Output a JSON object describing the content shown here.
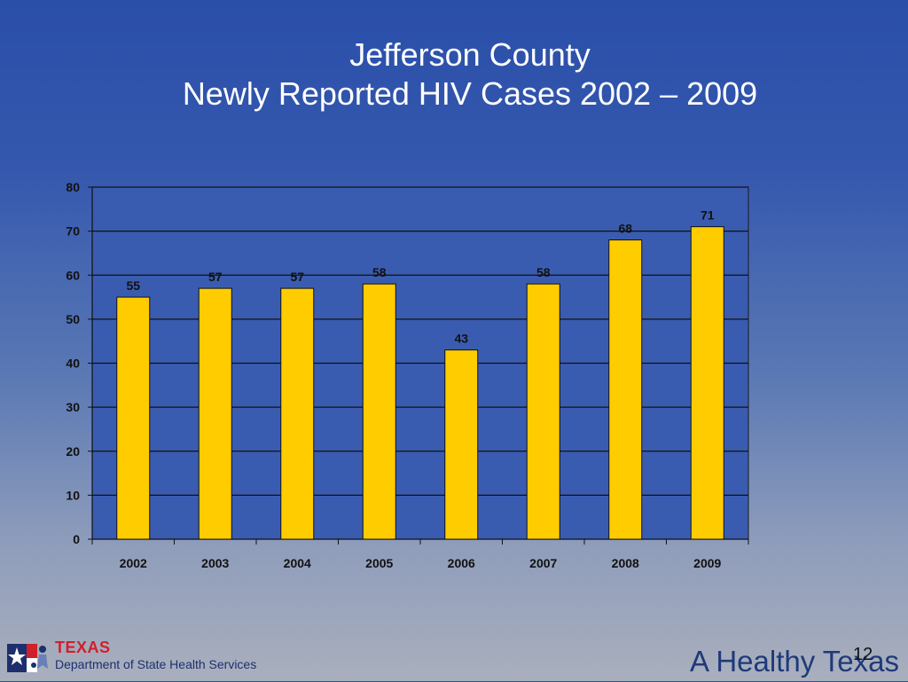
{
  "slide": {
    "title_line1": "Jefferson County",
    "title_line2": "Newly Reported HIV Cases  2002 – 2009",
    "page_number": "12",
    "tagline": "A Healthy Texas"
  },
  "logo": {
    "name": "TEXAS",
    "department": "Department of State Health Services"
  },
  "colors": {
    "bar": "#ffcc00",
    "accent_red": "#d0202a",
    "brand_blue": "#1f3a7a"
  },
  "chart_data": {
    "type": "bar",
    "categories": [
      "2002",
      "2003",
      "2004",
      "2005",
      "2006",
      "2007",
      "2008",
      "2009"
    ],
    "values": [
      55,
      57,
      57,
      58,
      43,
      58,
      68,
      71
    ],
    "ylim": [
      0,
      80
    ],
    "yticks": [
      0,
      10,
      20,
      30,
      40,
      50,
      60,
      70,
      80
    ],
    "grid": true,
    "data_labels": true
  }
}
